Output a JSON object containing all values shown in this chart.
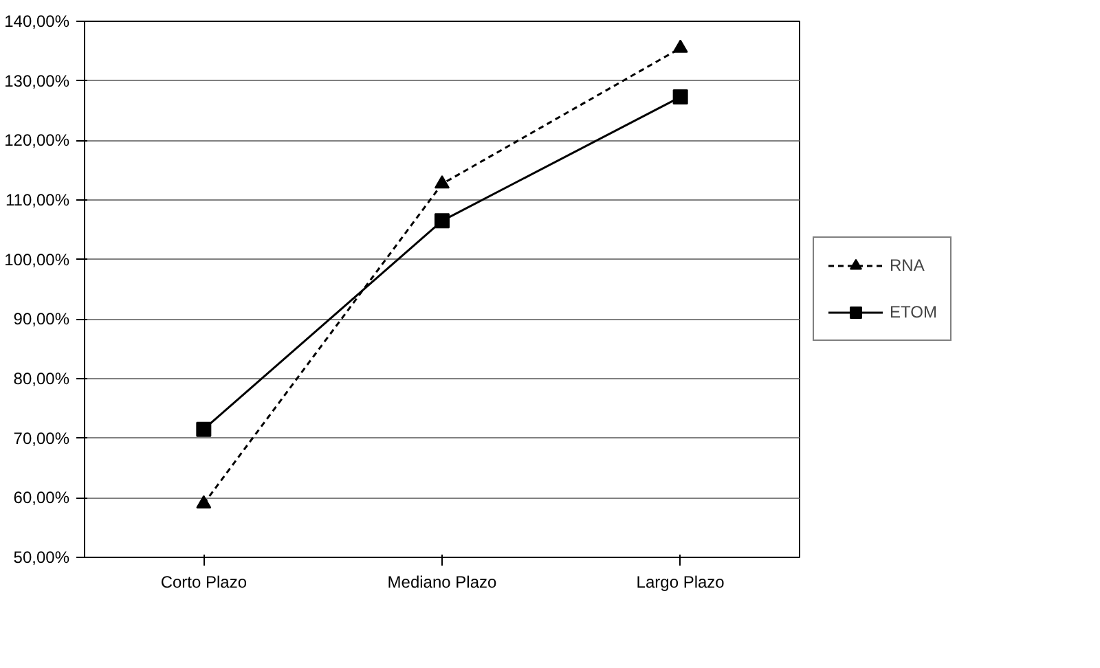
{
  "chart_data": {
    "type": "line",
    "categories": [
      "Corto Plazo",
      "Mediano Plazo",
      "Largo Plazo"
    ],
    "series": [
      {
        "name": "RNA",
        "color": "#000000",
        "values": [
          59,
          112.7,
          135.5
        ],
        "marker": "triangle",
        "line_style": "dashed"
      },
      {
        "name": "ETOM",
        "color": "#000000",
        "values": [
          71.5,
          106.5,
          127.3
        ],
        "marker": "square",
        "line_style": "solid"
      }
    ],
    "ylim": [
      50,
      140
    ],
    "yticks": [
      {
        "value": 50,
        "label": "50,00%"
      },
      {
        "value": 60,
        "label": "60,00%"
      },
      {
        "value": 70,
        "label": "70,00%"
      },
      {
        "value": 80,
        "label": "80,00%"
      },
      {
        "value": 90,
        "label": "90,00%"
      },
      {
        "value": 100,
        "label": "100,00%"
      },
      {
        "value": 110,
        "label": "110,00%"
      },
      {
        "value": 120,
        "label": "120,00%"
      },
      {
        "value": 130,
        "label": "130,00%"
      },
      {
        "value": 140,
        "label": "140,00%"
      }
    ],
    "grid": "y",
    "legend": "right"
  }
}
